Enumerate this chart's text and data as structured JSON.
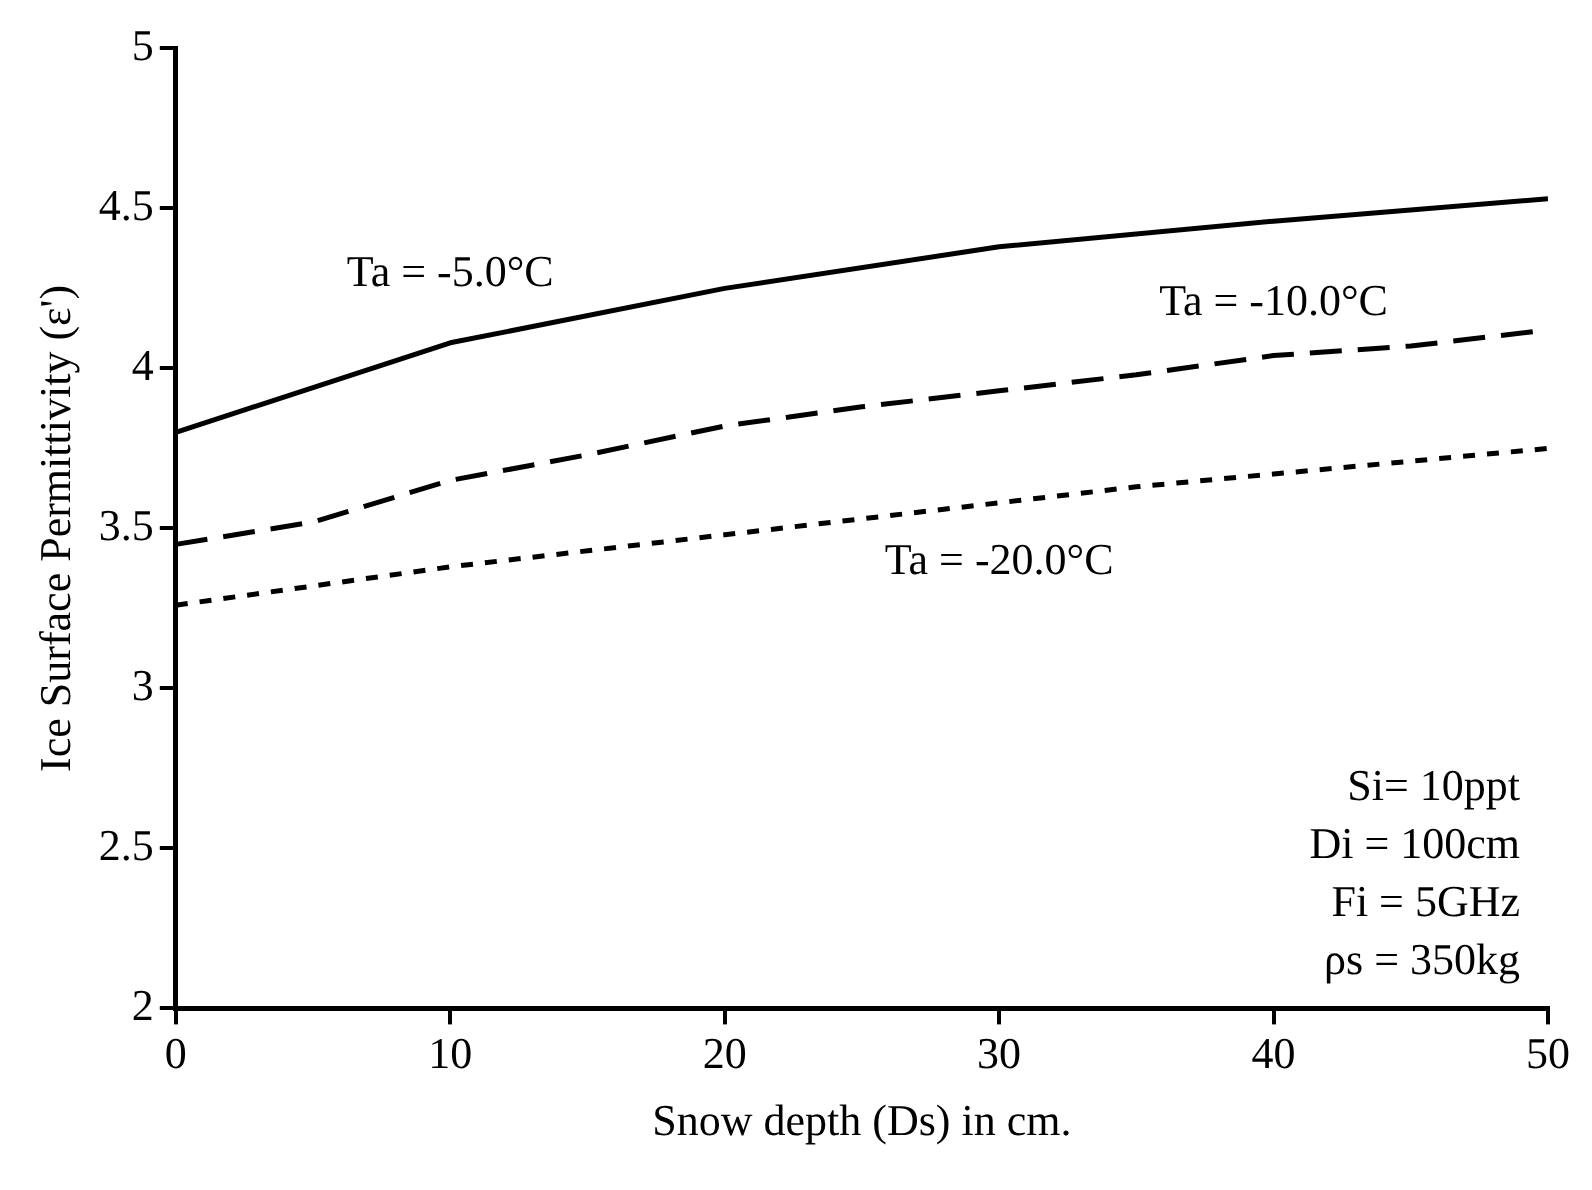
{
  "chart_data": {
    "type": "line",
    "xlabel": "Snow depth (Ds) in cm.",
    "ylabel": "Ice Surface Permittivity (ε')",
    "xlim": [
      0,
      50
    ],
    "xticks": [
      0,
      10,
      20,
      30,
      40,
      50
    ],
    "ylim": [
      2,
      5
    ],
    "yticks": [
      2,
      2.5,
      3,
      3.5,
      4,
      4.5,
      5
    ],
    "grid": false,
    "legend": false,
    "marker": "none",
    "series": [
      {
        "name": "Ta = -5.0°C",
        "color": "#000000",
        "line_style": "solid",
        "x": [
          0,
          10,
          20,
          30,
          40,
          50
        ],
        "values": [
          3.8,
          4.08,
          4.25,
          4.38,
          4.46,
          4.53
        ]
      },
      {
        "name": "Ta = -10.0°C",
        "color": "#000000",
        "line_style": "dashed",
        "x": [
          0,
          5,
          10,
          15,
          20,
          25,
          30,
          35,
          40,
          45,
          50
        ],
        "values": [
          3.45,
          3.52,
          3.65,
          3.73,
          3.82,
          3.88,
          3.93,
          3.98,
          4.04,
          4.07,
          4.12
        ]
      },
      {
        "name": "Ta = -20.0°C",
        "color": "#000000",
        "line_style": "dotted",
        "x": [
          0,
          10,
          20,
          30,
          35,
          40,
          45,
          50
        ],
        "values": [
          3.26,
          3.38,
          3.48,
          3.58,
          3.63,
          3.67,
          3.71,
          3.75
        ]
      }
    ],
    "annotations": [
      "Si= 10ppt",
      "Di = 100cm",
      "Fi = 5GHz",
      "ρs = 350kg"
    ]
  }
}
